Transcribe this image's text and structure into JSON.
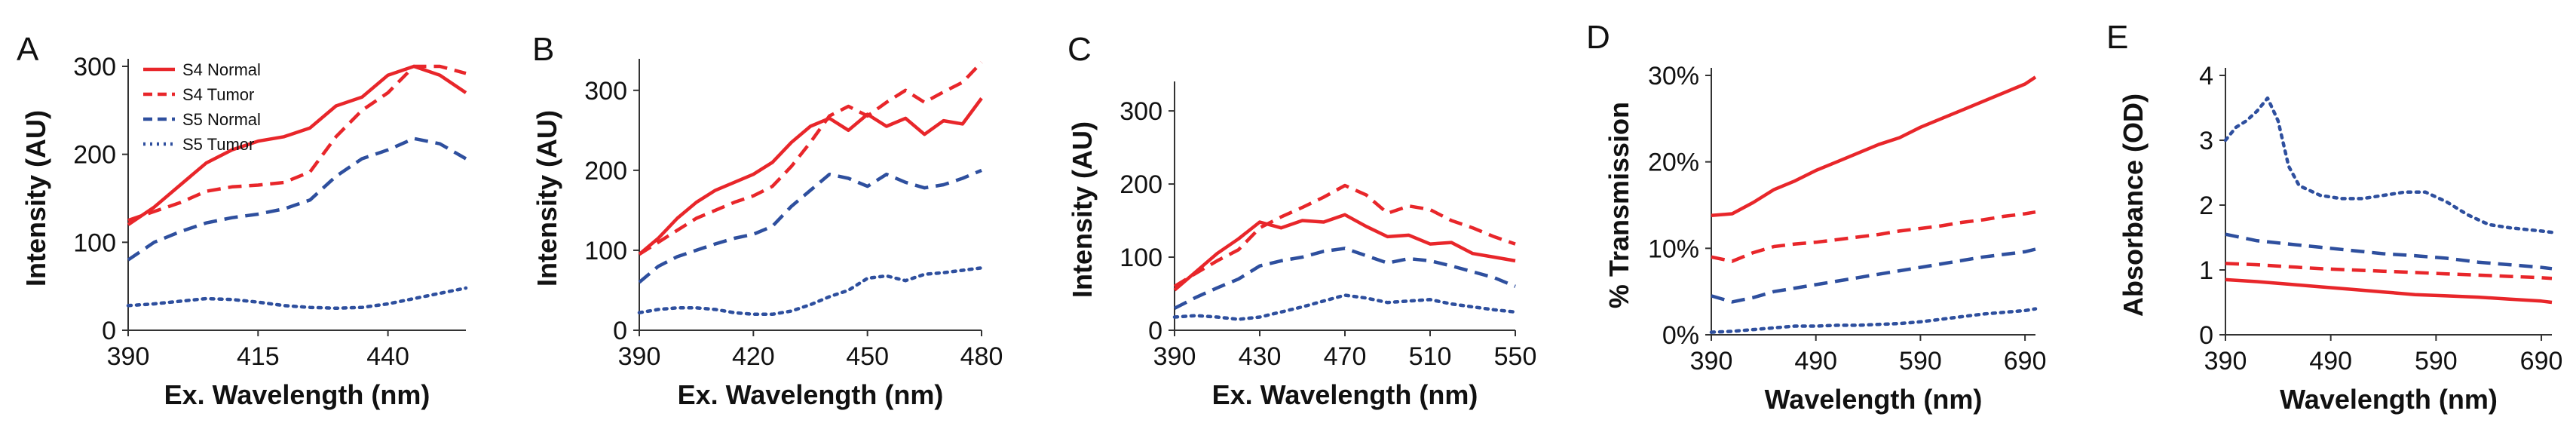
{
  "colors": {
    "red": "#e8262a",
    "blue": "#2e4f9e",
    "axis": "#333333"
  },
  "legend": [
    {
      "label": "S4 Normal",
      "color": "#e8262a",
      "dash": "solid"
    },
    {
      "label": "S4 Tumor",
      "color": "#e8262a",
      "dash": "dashed"
    },
    {
      "label": "S5 Normal",
      "color": "#2e4f9e",
      "dash": "dashed"
    },
    {
      "label": "S5 Tumor",
      "color": "#2e4f9e",
      "dash": "dotted"
    }
  ],
  "chart_data": [
    {
      "letter": "A",
      "type": "line",
      "xlabel": "Ex. Wavelength (nm)",
      "ylabel": "Intensity (AU)",
      "xlim": [
        390,
        455
      ],
      "ylim": [
        0,
        300
      ],
      "xticks": [
        390,
        415,
        440
      ],
      "yticks": [
        0,
        100,
        200,
        300
      ],
      "series": [
        {
          "name": "S4 Normal",
          "color": "#e8262a",
          "dash": "solid",
          "x": [
            390,
            395,
            400,
            405,
            410,
            415,
            420,
            425,
            430,
            435,
            440,
            445,
            450,
            455
          ],
          "y": [
            120,
            140,
            165,
            190,
            205,
            215,
            220,
            230,
            255,
            265,
            290,
            300,
            290,
            270
          ]
        },
        {
          "name": "S4 Tumor",
          "color": "#e8262a",
          "dash": "dashed",
          "x": [
            390,
            395,
            400,
            405,
            410,
            415,
            420,
            425,
            430,
            435,
            440,
            445,
            450,
            455
          ],
          "y": [
            125,
            135,
            145,
            158,
            163,
            165,
            168,
            180,
            220,
            250,
            270,
            300,
            300,
            292
          ]
        },
        {
          "name": "S5 Normal",
          "color": "#2e4f9e",
          "dash": "dashed",
          "x": [
            390,
            395,
            400,
            405,
            410,
            415,
            420,
            425,
            430,
            435,
            440,
            445,
            450,
            455
          ],
          "y": [
            80,
            100,
            112,
            122,
            128,
            132,
            138,
            148,
            175,
            195,
            205,
            218,
            212,
            195
          ]
        },
        {
          "name": "S5 Tumor",
          "color": "#2e4f9e",
          "dash": "dotted",
          "x": [
            390,
            395,
            400,
            405,
            410,
            415,
            420,
            425,
            430,
            435,
            440,
            445,
            450,
            455
          ],
          "y": [
            28,
            30,
            33,
            36,
            35,
            32,
            28,
            26,
            25,
            26,
            30,
            36,
            42,
            48
          ]
        }
      ]
    },
    {
      "letter": "B",
      "type": "line",
      "xlabel": "Ex. Wavelength (nm)",
      "ylabel": "Intensity (AU)",
      "xlim": [
        390,
        480
      ],
      "ylim": [
        0,
        330
      ],
      "xticks": [
        390,
        420,
        450,
        480
      ],
      "yticks": [
        0,
        100,
        200,
        300
      ],
      "series": [
        {
          "name": "S4 Normal",
          "color": "#e8262a",
          "dash": "solid",
          "x": [
            390,
            395,
            400,
            405,
            410,
            415,
            420,
            425,
            430,
            435,
            440,
            445,
            450,
            455,
            460,
            465,
            470,
            475,
            480
          ],
          "y": [
            95,
            115,
            140,
            160,
            175,
            185,
            195,
            210,
            235,
            255,
            265,
            250,
            270,
            255,
            265,
            245,
            262,
            258,
            290
          ]
        },
        {
          "name": "S4 Tumor",
          "color": "#e8262a",
          "dash": "dashed",
          "x": [
            390,
            395,
            400,
            405,
            410,
            415,
            420,
            425,
            430,
            435,
            440,
            445,
            450,
            455,
            460,
            465,
            470,
            475,
            480
          ],
          "y": [
            95,
            110,
            125,
            140,
            150,
            160,
            168,
            180,
            205,
            235,
            268,
            280,
            268,
            285,
            300,
            285,
            298,
            310,
            335
          ]
        },
        {
          "name": "S5 Normal",
          "color": "#2e4f9e",
          "dash": "dashed",
          "x": [
            390,
            395,
            400,
            405,
            410,
            415,
            420,
            425,
            430,
            435,
            440,
            445,
            450,
            455,
            460,
            465,
            470,
            475,
            480
          ],
          "y": [
            60,
            80,
            92,
            100,
            108,
            115,
            120,
            130,
            155,
            175,
            195,
            190,
            180,
            195,
            185,
            178,
            182,
            190,
            200
          ]
        },
        {
          "name": "S5 Tumor",
          "color": "#2e4f9e",
          "dash": "dotted",
          "x": [
            390,
            395,
            400,
            405,
            410,
            415,
            420,
            425,
            430,
            435,
            440,
            445,
            450,
            455,
            460,
            465,
            470,
            475,
            480
          ],
          "y": [
            22,
            26,
            28,
            28,
            26,
            22,
            20,
            20,
            24,
            32,
            42,
            50,
            65,
            68,
            62,
            70,
            72,
            75,
            78
          ]
        }
      ]
    },
    {
      "letter": "C",
      "type": "line",
      "xlabel": "Ex. Wavelength (nm)",
      "ylabel": "Intensity (AU)",
      "xlim": [
        390,
        550
      ],
      "ylim": [
        0,
        330
      ],
      "xticks": [
        390,
        430,
        470,
        510,
        550
      ],
      "yticks": [
        0,
        100,
        200,
        300
      ],
      "series": [
        {
          "name": "S4 Normal",
          "color": "#e8262a",
          "dash": "solid",
          "x": [
            390,
            400,
            410,
            420,
            430,
            440,
            450,
            460,
            470,
            480,
            490,
            500,
            510,
            520,
            530,
            540,
            550
          ],
          "y": [
            55,
            80,
            105,
            125,
            148,
            140,
            150,
            148,
            158,
            142,
            128,
            130,
            118,
            120,
            105,
            100,
            95
          ]
        },
        {
          "name": "S4 Tumor",
          "color": "#e8262a",
          "dash": "dashed",
          "x": [
            390,
            400,
            410,
            420,
            430,
            440,
            450,
            460,
            470,
            480,
            490,
            500,
            510,
            520,
            530,
            540,
            550
          ],
          "y": [
            60,
            78,
            95,
            110,
            140,
            155,
            168,
            182,
            198,
            185,
            160,
            170,
            165,
            150,
            140,
            128,
            118
          ]
        },
        {
          "name": "S5 Normal",
          "color": "#2e4f9e",
          "dash": "dashed",
          "x": [
            390,
            400,
            410,
            420,
            430,
            440,
            450,
            460,
            470,
            480,
            490,
            500,
            510,
            520,
            530,
            540,
            550
          ],
          "y": [
            30,
            45,
            58,
            70,
            88,
            95,
            100,
            108,
            112,
            102,
            92,
            98,
            95,
            88,
            80,
            72,
            60
          ]
        },
        {
          "name": "S5 Tumor",
          "color": "#2e4f9e",
          "dash": "dotted",
          "x": [
            390,
            400,
            410,
            420,
            430,
            440,
            450,
            460,
            470,
            480,
            490,
            500,
            510,
            520,
            530,
            540,
            550
          ],
          "y": [
            18,
            20,
            18,
            15,
            18,
            25,
            32,
            40,
            48,
            44,
            38,
            40,
            42,
            36,
            32,
            28,
            25
          ]
        }
      ]
    },
    {
      "letter": "D",
      "type": "line",
      "xlabel": "Wavelength (nm)",
      "ylabel": "% Transmission",
      "xlim": [
        390,
        700
      ],
      "ylim": [
        0,
        30
      ],
      "xticks": [
        390,
        490,
        590,
        690
      ],
      "yticks": [
        0,
        10,
        20,
        30
      ],
      "ytick_labels": [
        "0%",
        "10%",
        "20%",
        "30%"
      ],
      "series": [
        {
          "name": "S4 Normal",
          "color": "#e8262a",
          "dash": "solid",
          "x": [
            390,
            410,
            430,
            450,
            470,
            490,
            510,
            530,
            550,
            570,
            590,
            610,
            630,
            650,
            670,
            690,
            700
          ],
          "y": [
            13.8,
            14.0,
            15.3,
            16.8,
            17.8,
            19.0,
            20.0,
            21.0,
            22.0,
            22.8,
            24.0,
            25.0,
            26.0,
            27.0,
            28.0,
            29.0,
            29.8
          ]
        },
        {
          "name": "S4 Tumor",
          "color": "#e8262a",
          "dash": "dashed",
          "x": [
            390,
            410,
            430,
            450,
            470,
            490,
            510,
            530,
            550,
            570,
            590,
            610,
            630,
            650,
            670,
            690,
            700
          ],
          "y": [
            9.0,
            8.5,
            9.5,
            10.2,
            10.5,
            10.7,
            11.0,
            11.3,
            11.6,
            12.0,
            12.3,
            12.6,
            13.0,
            13.3,
            13.7,
            14.0,
            14.2
          ]
        },
        {
          "name": "S5 Normal",
          "color": "#2e4f9e",
          "dash": "dashed",
          "x": [
            390,
            410,
            430,
            450,
            470,
            490,
            510,
            530,
            550,
            570,
            590,
            610,
            630,
            650,
            670,
            690,
            700
          ],
          "y": [
            4.5,
            3.8,
            4.3,
            5.0,
            5.4,
            5.8,
            6.2,
            6.6,
            7.0,
            7.4,
            7.8,
            8.2,
            8.6,
            9.0,
            9.3,
            9.6,
            9.9
          ]
        },
        {
          "name": "S5 Tumor",
          "color": "#2e4f9e",
          "dash": "dotted",
          "x": [
            390,
            410,
            430,
            450,
            470,
            490,
            510,
            530,
            550,
            570,
            590,
            610,
            630,
            650,
            670,
            690,
            700
          ],
          "y": [
            0.3,
            0.4,
            0.6,
            0.8,
            1.0,
            1.0,
            1.1,
            1.1,
            1.2,
            1.3,
            1.5,
            1.8,
            2.1,
            2.4,
            2.6,
            2.8,
            3.0
          ]
        }
      ]
    },
    {
      "letter": "E",
      "type": "line",
      "xlabel": "Wavelength (nm)",
      "ylabel": "Absorbance (OD)",
      "xlim": [
        390,
        700
      ],
      "ylim": [
        0,
        4
      ],
      "xticks": [
        390,
        490,
        590,
        690
      ],
      "yticks": [
        0,
        1,
        2,
        3,
        4
      ],
      "series": [
        {
          "name": "S4 Normal",
          "color": "#e8262a",
          "dash": "solid",
          "x": [
            390,
            420,
            450,
            480,
            510,
            540,
            570,
            600,
            630,
            660,
            690,
            700
          ],
          "y": [
            0.85,
            0.82,
            0.78,
            0.74,
            0.7,
            0.66,
            0.62,
            0.6,
            0.58,
            0.55,
            0.52,
            0.5
          ]
        },
        {
          "name": "S4 Tumor",
          "color": "#e8262a",
          "dash": "dashed",
          "x": [
            390,
            420,
            450,
            480,
            510,
            540,
            570,
            600,
            630,
            660,
            690,
            700
          ],
          "y": [
            1.1,
            1.08,
            1.05,
            1.02,
            1.0,
            0.98,
            0.96,
            0.94,
            0.92,
            0.9,
            0.88,
            0.87
          ]
        },
        {
          "name": "S5 Normal",
          "color": "#2e4f9e",
          "dash": "dashed",
          "x": [
            390,
            420,
            450,
            480,
            510,
            540,
            570,
            600,
            630,
            660,
            690,
            700
          ],
          "y": [
            1.55,
            1.45,
            1.4,
            1.35,
            1.3,
            1.25,
            1.22,
            1.18,
            1.12,
            1.08,
            1.04,
            1.02
          ]
        },
        {
          "name": "S5 Tumor",
          "color": "#2e4f9e",
          "dash": "dotted",
          "x": [
            390,
            400,
            410,
            420,
            430,
            440,
            450,
            460,
            480,
            500,
            520,
            540,
            560,
            580,
            600,
            620,
            640,
            660,
            690,
            700
          ],
          "y": [
            3.0,
            3.2,
            3.3,
            3.45,
            3.65,
            3.3,
            2.6,
            2.3,
            2.15,
            2.1,
            2.1,
            2.15,
            2.2,
            2.2,
            2.05,
            1.85,
            1.7,
            1.65,
            1.6,
            1.58
          ]
        }
      ]
    }
  ]
}
